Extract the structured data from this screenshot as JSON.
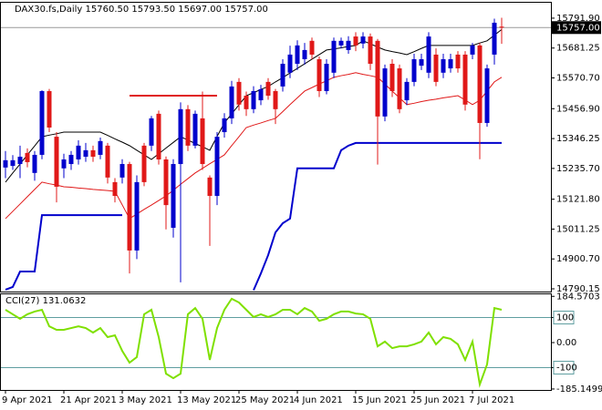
{
  "chart_data": [
    {
      "type": "candlestick",
      "title": "DAX30.fs,Daily  15760.50 15793.50 15697.00 15757.00",
      "categories": [
        "9 Apr 2021",
        null,
        null,
        null,
        null,
        null,
        null,
        null,
        "21 Apr 2021",
        null,
        null,
        null,
        null,
        null,
        null,
        null,
        "3 May 2021",
        null,
        null,
        null,
        null,
        null,
        null,
        null,
        "13 May 2021",
        null,
        null,
        null,
        null,
        null,
        null,
        null,
        "25 May 2021",
        null,
        null,
        null,
        null,
        null,
        null,
        null,
        "4 Jun 2021",
        null,
        null,
        null,
        null,
        null,
        null,
        null,
        "15 Jun 2021",
        null,
        null,
        null,
        null,
        null,
        null,
        null,
        "25 Jun 2021",
        null,
        null,
        null,
        null,
        null,
        null,
        null,
        "7 Jul 2021",
        null,
        null,
        null,
        null
      ],
      "open": [
        15239,
        15245,
        15252,
        15293,
        15219,
        15286,
        15522,
        15353,
        15236,
        15252,
        15269,
        15279,
        15303,
        15286,
        15320,
        15185,
        15202,
        15252,
        14932,
        15320,
        15320,
        15438,
        15269,
        15016,
        15252,
        15455,
        15320,
        15421,
        15202,
        15134,
        15370,
        15421,
        15556,
        15505,
        15455,
        15488,
        15556,
        15522,
        15539,
        15590,
        15623,
        15640,
        15708,
        15640,
        15522,
        15590,
        15691,
        15674,
        15724,
        15698,
        15724,
        15708,
        15428,
        15623,
        15606,
        15488,
        15556,
        15616,
        15590,
        15657,
        15590,
        15606,
        15657,
        15657,
        15657,
        15691,
        15404,
        15657,
        15760.5
      ],
      "high": [
        15300,
        15285,
        15320,
        15310,
        15300,
        15525,
        15530,
        15370,
        15290,
        15300,
        15340,
        15330,
        15320,
        15350,
        15330,
        15200,
        15270,
        15260,
        15210,
        15330,
        15430,
        15450,
        15280,
        15270,
        15480,
        15470,
        15450,
        15520,
        15210,
        15370,
        15440,
        15560,
        15570,
        15520,
        15540,
        15545,
        15570,
        15530,
        15640,
        15690,
        15710,
        15700,
        15720,
        15650,
        15640,
        15720,
        15720,
        15725,
        15740,
        15740,
        15735,
        15715,
        15620,
        15640,
        15620,
        15570,
        15660,
        15660,
        15740,
        15680,
        15660,
        15660,
        15670,
        15670,
        15700,
        15700,
        15620,
        15790,
        15793.5
      ],
      "low": [
        15200,
        15230,
        15200,
        15240,
        15190,
        15270,
        15370,
        15110,
        15200,
        15230,
        15250,
        15260,
        15260,
        15270,
        15180,
        15110,
        15180,
        14847,
        14900,
        15170,
        15300,
        15250,
        15010,
        14980,
        14814,
        15300,
        15310,
        15230,
        14949,
        15100,
        15350,
        15400,
        15450,
        15430,
        15440,
        15470,
        15490,
        15400,
        15520,
        15570,
        15600,
        15620,
        15640,
        15500,
        15510,
        15570,
        15680,
        15660,
        15670,
        15680,
        15600,
        15250,
        15410,
        15500,
        15440,
        15470,
        15540,
        15600,
        15570,
        15540,
        15570,
        15590,
        15590,
        15450,
        15640,
        15270,
        15390,
        15620,
        15697
      ],
      "close": [
        15266,
        15266,
        15279,
        15259,
        15286,
        15522,
        15387,
        15168,
        15269,
        15286,
        15320,
        15303,
        15279,
        15337,
        15202,
        15134,
        15252,
        14932,
        15185,
        15185,
        15421,
        15269,
        15100,
        15252,
        15455,
        15320,
        15438,
        15252,
        15134,
        15353,
        15421,
        15539,
        15472,
        15455,
        15522,
        15529,
        15505,
        15455,
        15623,
        15657,
        15691,
        15674,
        15657,
        15522,
        15623,
        15708,
        15708,
        15708,
        15691,
        15724,
        15623,
        15428,
        15606,
        15522,
        15455,
        15556,
        15640,
        15640,
        15724,
        15556,
        15640,
        15640,
        15606,
        15472,
        15691,
        15404,
        15606,
        15775,
        15757
      ],
      "up_color": "#0000cc",
      "down_color": "#e01818",
      "lines": [
        {
          "color": "#000000",
          "width": 1,
          "values": [
            15185,
            15219,
            15252,
            15286,
            15319,
            15353,
            15359,
            15364,
            15370,
            15370,
            15370,
            15370,
            15370,
            15370,
            15358,
            15345,
            15333,
            15320,
            15303,
            15286,
            15269,
            15290,
            15311,
            15332,
            15353,
            15341,
            15328,
            15316,
            15303,
            15354,
            15404,
            15438,
            15471,
            15505,
            15516,
            15528,
            15539,
            15556,
            15572,
            15589,
            15606,
            15623,
            15640,
            15657,
            15674,
            15678,
            15682,
            15687,
            15691,
            15708,
            15697,
            15685,
            15674,
            15668,
            15663,
            15657,
            15668,
            15680,
            15691,
            15691,
            15691,
            15691,
            15691,
            15691,
            15691,
            15700,
            15708,
            15729,
            15750
          ]
        },
        {
          "color": "#e01818",
          "width": 1,
          "values": [
            15050,
            15077,
            15104,
            15131,
            15158,
            15185,
            15179,
            15174,
            15168,
            15166,
            15163,
            15161,
            15158,
            15156,
            15154,
            15151,
            15101,
            15050,
            15067,
            15084,
            15100,
            15117,
            15134,
            15155,
            15177,
            15198,
            15219,
            15236,
            15253,
            15269,
            15286,
            15320,
            15353,
            15387,
            15396,
            15404,
            15413,
            15421,
            15446,
            15472,
            15497,
            15522,
            15535,
            15548,
            15560,
            15573,
            15579,
            15584,
            15590,
            15584,
            15579,
            15573,
            15548,
            15522,
            15497,
            15472,
            15477,
            15483,
            15488,
            15492,
            15497,
            15501,
            15505,
            15489,
            15472,
            15488,
            15522,
            15556,
            15573
          ]
        },
        {
          "color": "#0000cc",
          "width": 2,
          "values": [
            14787,
            14797,
            14854,
            14854,
            14854,
            15063,
            15063,
            15063,
            15063,
            15063,
            15063,
            15063,
            15063,
            15063,
            15063,
            15063,
            15063,
            null,
            null,
            null,
            null,
            null,
            null,
            null,
            null,
            null,
            null,
            null,
            null,
            null,
            null,
            null,
            null,
            null,
            14785,
            14847,
            14915,
            14999,
            15033,
            15050,
            15236,
            15236,
            15236,
            15236,
            15236,
            15236,
            15303,
            15320,
            15330,
            15330,
            15330,
            15330,
            15330,
            15330,
            15330,
            15330,
            15330,
            15330,
            15330,
            15330,
            15330,
            15330,
            15330,
            15330,
            15330,
            15330,
            15330,
            15330,
            15330
          ]
        },
        {
          "color": "#e01818",
          "width": 2,
          "values": [
            null,
            null,
            null,
            null,
            null,
            null,
            null,
            null,
            null,
            null,
            null,
            null,
            null,
            null,
            null,
            null,
            null,
            15505,
            15505,
            15505,
            15505,
            15505,
            15505,
            15505,
            15505,
            15505,
            15505,
            15505,
            15505,
            15505,
            null,
            null,
            null,
            null,
            null,
            null,
            null,
            null,
            null,
            null,
            null,
            null,
            null,
            null,
            null,
            null,
            null,
            null,
            null,
            null,
            null,
            null,
            null,
            null,
            null,
            null,
            null,
            null,
            null,
            null,
            null,
            null,
            null,
            null,
            null,
            null,
            null,
            null,
            null
          ]
        }
      ],
      "current_price": {
        "value": 15757,
        "label": "15757.00"
      },
      "ylim": [
        14780,
        15849
      ],
      "yticks": [
        {
          "value": 15791.9,
          "label": "15791.90"
        },
        15681.25,
        {
          "value": 15570.7,
          "label": "15570.70"
        },
        {
          "value": 15456.9,
          "label": "15456.90"
        },
        15346.25,
        {
          "value": 15235.7,
          "label": "15235.70"
        },
        {
          "value": 15121.8,
          "label": "15121.80"
        },
        15011.25,
        {
          "value": 14900.7,
          "label": "14900.70"
        },
        14790.15
      ]
    },
    {
      "type": "line",
      "title": "CCI(27) 131.0632",
      "color": "#7fe000",
      "values": [
        131,
        113,
        95,
        113,
        124,
        131,
        65,
        51,
        51,
        58,
        65,
        58,
        40,
        58,
        22,
        29,
        -33,
        -80,
        -58,
        113,
        131,
        22,
        -124,
        -142,
        -124,
        113,
        138,
        95,
        -69,
        58,
        131,
        175,
        160,
        131,
        102,
        113,
        102,
        113,
        131,
        131,
        113,
        138,
        124,
        87,
        95,
        113,
        124,
        124,
        116,
        113,
        95,
        -15,
        4,
        -22,
        -15,
        -15,
        -7,
        4,
        40,
        -7,
        22,
        15,
        -7,
        -69,
        4,
        -167,
        -87,
        138,
        131.0632
      ],
      "levels": [
        100,
        -100
      ],
      "ylim": [
        -189,
        196.4
      ],
      "yticks": [
        184.5703,
        100,
        {
          "value": 0,
          "label": "0.00"
        },
        -100,
        -185.1499
      ]
    }
  ]
}
